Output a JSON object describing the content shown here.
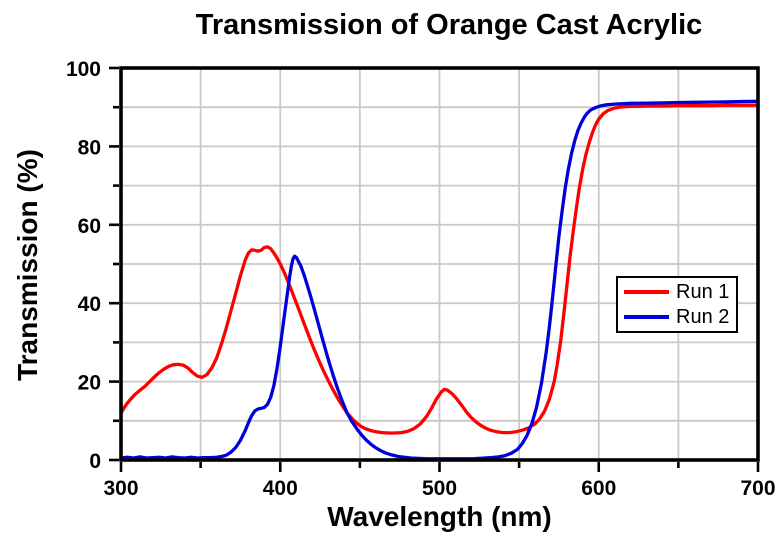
{
  "colors": {
    "run1": "#ff0000",
    "run2": "#0000dd",
    "grid": "#c9c9c9",
    "frame": "#000000",
    "background": "#ffffff"
  },
  "chart_data": {
    "type": "line",
    "title": "Transmission of Orange Cast Acrylic",
    "xlabel": "Wavelength (nm)",
    "ylabel": "Transmission (%)",
    "xlim": [
      300,
      700
    ],
    "ylim": [
      0,
      100
    ],
    "x_major_ticks": [
      300,
      400,
      500,
      600,
      700
    ],
    "x_minor_ticks": [
      350,
      450,
      550,
      650
    ],
    "y_major_ticks": [
      0,
      20,
      40,
      60,
      80,
      100
    ],
    "y_minor_ticks": [
      10,
      30,
      50,
      70,
      90
    ],
    "grid": "on (major and minor, light gray)",
    "legend_position": "right-center",
    "legend": [
      "Run 1",
      "Run 2"
    ],
    "series": [
      {
        "name": "Run 1",
        "color": "#ff0000",
        "points": [
          [
            300,
            12
          ],
          [
            303,
            14
          ],
          [
            306,
            15.5
          ],
          [
            309,
            16.8
          ],
          [
            312,
            17.8
          ],
          [
            315,
            18.8
          ],
          [
            318,
            20
          ],
          [
            321,
            21.2
          ],
          [
            324,
            22.3
          ],
          [
            327,
            23.2
          ],
          [
            330,
            23.9
          ],
          [
            333,
            24.3
          ],
          [
            336,
            24.4
          ],
          [
            339,
            24.2
          ],
          [
            342,
            23.5
          ],
          [
            345,
            22.3
          ],
          [
            348,
            21.4
          ],
          [
            351,
            21.1
          ],
          [
            354,
            21.8
          ],
          [
            357,
            23.5
          ],
          [
            360,
            26
          ],
          [
            363,
            29.5
          ],
          [
            366,
            33.5
          ],
          [
            369,
            38
          ],
          [
            372,
            42.5
          ],
          [
            375,
            47
          ],
          [
            378,
            51
          ],
          [
            380,
            52.8
          ],
          [
            382,
            53.6
          ],
          [
            384,
            53.5
          ],
          [
            386,
            53.3
          ],
          [
            388,
            53.5
          ],
          [
            390,
            54.2
          ],
          [
            392,
            54.4
          ],
          [
            394,
            53.9
          ],
          [
            396,
            52.8
          ],
          [
            398,
            51.5
          ],
          [
            400,
            50
          ],
          [
            403,
            47.4
          ],
          [
            406,
            44.4
          ],
          [
            409,
            41.2
          ],
          [
            412,
            38
          ],
          [
            415,
            34.8
          ],
          [
            418,
            31.6
          ],
          [
            421,
            28.5
          ],
          [
            424,
            25.6
          ],
          [
            427,
            22.9
          ],
          [
            430,
            20.4
          ],
          [
            433,
            18
          ],
          [
            436,
            15.8
          ],
          [
            439,
            13.8
          ],
          [
            442,
            12
          ],
          [
            445,
            10.6
          ],
          [
            448,
            9.4
          ],
          [
            451,
            8.5
          ],
          [
            454,
            7.9
          ],
          [
            457,
            7.5
          ],
          [
            460,
            7.2
          ],
          [
            464,
            7
          ],
          [
            468,
            6.9
          ],
          [
            472,
            6.9
          ],
          [
            476,
            7
          ],
          [
            480,
            7.3
          ],
          [
            484,
            8
          ],
          [
            488,
            9.2
          ],
          [
            492,
            11.2
          ],
          [
            495,
            13.2
          ],
          [
            498,
            15.5
          ],
          [
            501,
            17.3
          ],
          [
            503,
            18
          ],
          [
            505,
            17.8
          ],
          [
            508,
            16.9
          ],
          [
            511,
            15.5
          ],
          [
            514,
            13.9
          ],
          [
            517,
            12.2
          ],
          [
            520,
            10.8
          ],
          [
            523,
            9.7
          ],
          [
            526,
            8.8
          ],
          [
            529,
            8.1
          ],
          [
            532,
            7.6
          ],
          [
            536,
            7.2
          ],
          [
            540,
            7
          ],
          [
            544,
            7
          ],
          [
            548,
            7.2
          ],
          [
            552,
            7.6
          ],
          [
            556,
            8.2
          ],
          [
            560,
            9.2
          ],
          [
            563,
            10.5
          ],
          [
            566,
            12.5
          ],
          [
            569,
            15.5
          ],
          [
            572,
            20
          ],
          [
            574,
            24.5
          ],
          [
            576,
            30
          ],
          [
            578,
            37
          ],
          [
            580,
            44.5
          ],
          [
            582,
            52
          ],
          [
            584,
            58.5
          ],
          [
            586,
            64.5
          ],
          [
            588,
            69.8
          ],
          [
            590,
            74.3
          ],
          [
            592,
            78
          ],
          [
            594,
            81
          ],
          [
            596,
            83.5
          ],
          [
            598,
            85.5
          ],
          [
            600,
            87
          ],
          [
            603,
            88.4
          ],
          [
            606,
            89.2
          ],
          [
            610,
            89.8
          ],
          [
            615,
            90.1
          ],
          [
            620,
            90.2
          ],
          [
            630,
            90.3
          ],
          [
            640,
            90.3
          ],
          [
            650,
            90.4
          ],
          [
            660,
            90.4
          ],
          [
            670,
            90.4
          ],
          [
            680,
            90.5
          ],
          [
            690,
            90.5
          ],
          [
            700,
            90.5
          ]
        ]
      },
      {
        "name": "Run 2",
        "color": "#0000dd",
        "points": [
          [
            300,
            0.5
          ],
          [
            304,
            0.7
          ],
          [
            308,
            0.5
          ],
          [
            312,
            0.8
          ],
          [
            316,
            0.5
          ],
          [
            320,
            0.6
          ],
          [
            324,
            0.7
          ],
          [
            328,
            0.5
          ],
          [
            332,
            0.8
          ],
          [
            336,
            0.6
          ],
          [
            340,
            0.5
          ],
          [
            344,
            0.7
          ],
          [
            348,
            0.5
          ],
          [
            352,
            0.6
          ],
          [
            356,
            0.6
          ],
          [
            360,
            0.7
          ],
          [
            363,
            0.9
          ],
          [
            366,
            1.2
          ],
          [
            369,
            2
          ],
          [
            372,
            3.2
          ],
          [
            375,
            5
          ],
          [
            378,
            7.5
          ],
          [
            380,
            9.5
          ],
          [
            382,
            11.3
          ],
          [
            384,
            12.5
          ],
          [
            386,
            13
          ],
          [
            388,
            13.2
          ],
          [
            390,
            13.4
          ],
          [
            392,
            14.2
          ],
          [
            394,
            16
          ],
          [
            396,
            19
          ],
          [
            398,
            23.5
          ],
          [
            400,
            29
          ],
          [
            402,
            35
          ],
          [
            404,
            41
          ],
          [
            406,
            47
          ],
          [
            407,
            49.5
          ],
          [
            408,
            51.3
          ],
          [
            409,
            52
          ],
          [
            410,
            51.7
          ],
          [
            411,
            51
          ],
          [
            413,
            49.4
          ],
          [
            415,
            47.2
          ],
          [
            417,
            44.6
          ],
          [
            419,
            41.9
          ],
          [
            421,
            39
          ],
          [
            424,
            34.6
          ],
          [
            427,
            30.2
          ],
          [
            430,
            25.9
          ],
          [
            433,
            21.9
          ],
          [
            436,
            18.2
          ],
          [
            439,
            14.9
          ],
          [
            442,
            12
          ],
          [
            445,
            9.8
          ],
          [
            448,
            8
          ],
          [
            451,
            6.4
          ],
          [
            454,
            5.1
          ],
          [
            457,
            4
          ],
          [
            460,
            3.1
          ],
          [
            463,
            2.4
          ],
          [
            466,
            1.8
          ],
          [
            470,
            1.3
          ],
          [
            474,
            0.9
          ],
          [
            478,
            0.7
          ],
          [
            482,
            0.5
          ],
          [
            487,
            0.4
          ],
          [
            492,
            0.3
          ],
          [
            497,
            0.3
          ],
          [
            502,
            0.3
          ],
          [
            507,
            0.3
          ],
          [
            512,
            0.3
          ],
          [
            517,
            0.3
          ],
          [
            522,
            0.35
          ],
          [
            527,
            0.45
          ],
          [
            532,
            0.6
          ],
          [
            537,
            0.8
          ],
          [
            541,
            1.1
          ],
          [
            545,
            1.7
          ],
          [
            549,
            2.7
          ],
          [
            552,
            4.2
          ],
          [
            555,
            6.3
          ],
          [
            558,
            9.3
          ],
          [
            561,
            13.5
          ],
          [
            564,
            19.5
          ],
          [
            567,
            27.5
          ],
          [
            569,
            34
          ],
          [
            571,
            41.5
          ],
          [
            573,
            49.5
          ],
          [
            575,
            57
          ],
          [
            577,
            63.5
          ],
          [
            579,
            69.5
          ],
          [
            581,
            74.4
          ],
          [
            583,
            78.4
          ],
          [
            585,
            81.6
          ],
          [
            587,
            84.1
          ],
          [
            589,
            86
          ],
          [
            591,
            87.5
          ],
          [
            593,
            88.6
          ],
          [
            595,
            89.3
          ],
          [
            598,
            89.9
          ],
          [
            601,
            90.3
          ],
          [
            605,
            90.6
          ],
          [
            610,
            90.8
          ],
          [
            620,
            91
          ],
          [
            630,
            91.05
          ],
          [
            640,
            91.1
          ],
          [
            650,
            91.2
          ],
          [
            660,
            91.25
          ],
          [
            670,
            91.3
          ],
          [
            680,
            91.35
          ],
          [
            690,
            91.45
          ],
          [
            700,
            91.5
          ]
        ]
      }
    ]
  }
}
